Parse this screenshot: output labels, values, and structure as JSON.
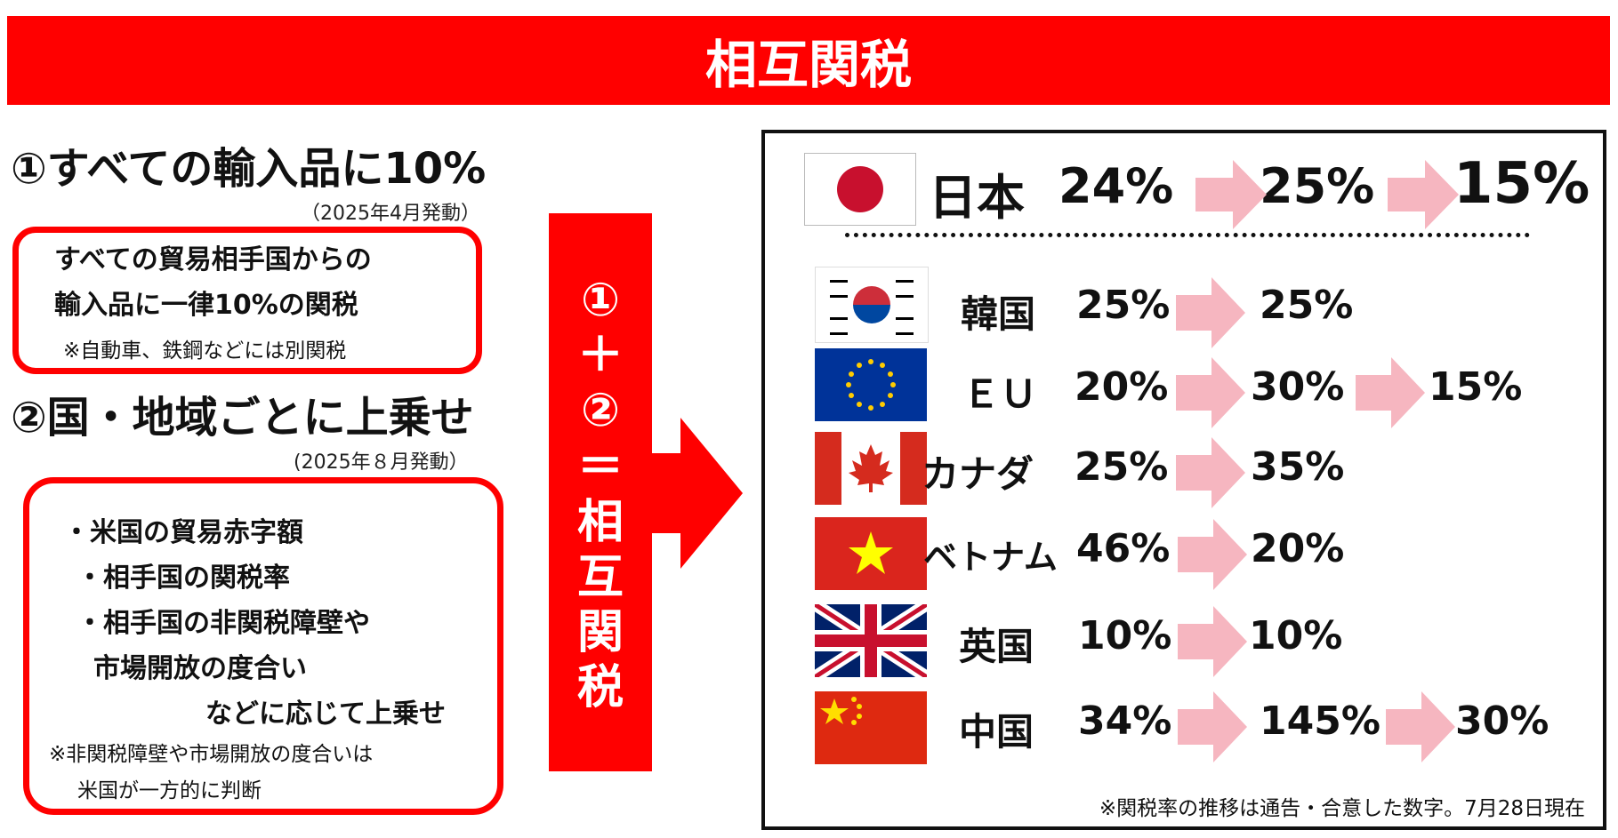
{
  "title": "相互関税",
  "section1": {
    "heading": "①すべての輸入品に10%",
    "date": "（2025年4月発動）",
    "box_line1": "すべての貿易相手国からの",
    "box_line2": "輸入品に一律10%の関税",
    "box_note": "※自動車、鉄鋼などには別関税"
  },
  "section2": {
    "heading": "②国・地域ごとに上乗せ",
    "date": "(2025年８月発動）",
    "items": [
      "・米国の貿易赤字額",
      "・相手国の関税率",
      "・相手国の非関税障壁や",
      "市場開放の度合い",
      "などに応じて上乗せ"
    ],
    "note1": "※非関税障壁や市場開放の度合いは",
    "note2": "米国が一方的に判断"
  },
  "middle": {
    "chars": [
      "①",
      "＋",
      "②",
      "＝",
      "相",
      "互",
      "関",
      "税"
    ]
  },
  "countries": [
    {
      "name": "日本",
      "flag": "japan-flag",
      "rates": [
        "24%",
        "25%",
        "15%"
      ]
    },
    {
      "name": "韓国",
      "flag": "south-korea-flag",
      "rates": [
        "25%",
        "25%"
      ]
    },
    {
      "name": "ＥＵ",
      "flag": "eu-flag",
      "rates": [
        "20%",
        "30%",
        "15%"
      ]
    },
    {
      "name": "カナダ",
      "flag": "canada-flag",
      "rates": [
        "25%",
        "35%"
      ]
    },
    {
      "name": "ベトナム",
      "flag": "vietnam-flag",
      "rates": [
        "46%",
        "20%"
      ]
    },
    {
      "name": "英国",
      "flag": "uk-flag",
      "rates": [
        "10%",
        "10%"
      ]
    },
    {
      "name": "中国",
      "flag": "china-flag",
      "rates": [
        "34%",
        "145%",
        "30%"
      ]
    }
  ],
  "footnote": "※関税率の推移は通告・合意した数字。7月28日現在",
  "colors": {
    "accent": "#ff0000",
    "arrow": "#f6b6c0",
    "text": "#111111"
  }
}
